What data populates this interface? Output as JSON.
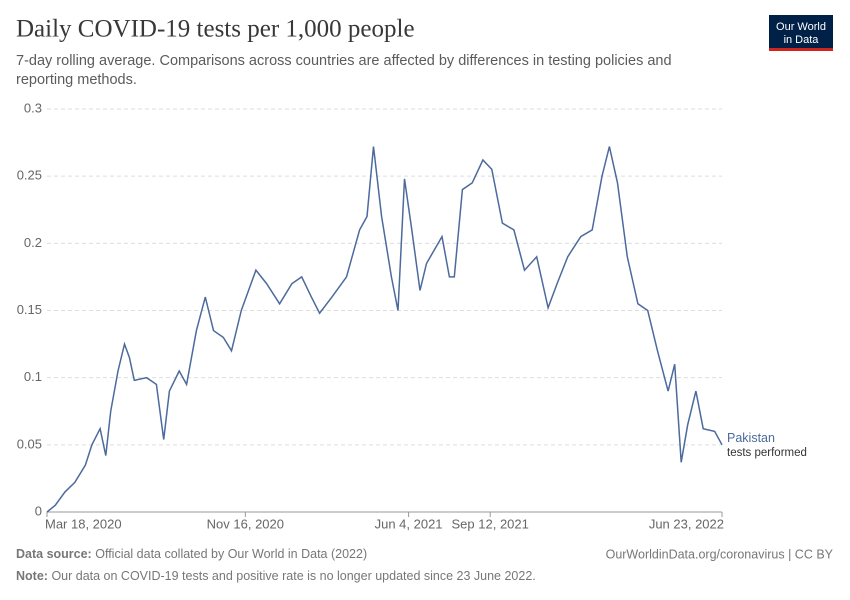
{
  "chart_data": {
    "type": "line",
    "title": "Daily COVID-19 tests per 1,000 people",
    "subtitle": [
      "7-day rolling average. Comparisons across countries are affected by differences in testing policies and",
      "reporting methods."
    ],
    "logo": [
      "Our World",
      "in Data"
    ],
    "annotation": "tests performed",
    "source_label": "Data source:",
    "source": "Official data collated by Our World in Data (2022)",
    "link": "OurWorldinData.org/coronavirus | CC BY",
    "note_label": "Note:",
    "note": "Our data on COVID-19 tests and positive rate is no longer updated since 23 June 2022.",
    "x": [
      "2020-03-18",
      "2020-03-28",
      "2020-04-09",
      "2020-04-21",
      "2020-05-04",
      "2020-05-12",
      "2020-05-22",
      "2020-05-29",
      "2020-06-04",
      "2020-06-13",
      "2020-06-21",
      "2020-06-27",
      "2020-07-03",
      "2020-07-18",
      "2020-07-30",
      "2020-08-08",
      "2020-08-15",
      "2020-08-27",
      "2020-09-05",
      "2020-09-17",
      "2020-09-28",
      "2020-10-08",
      "2020-10-20",
      "2020-10-30",
      "2020-11-11",
      "2020-11-29",
      "2020-12-12",
      "2020-12-28",
      "2021-01-12",
      "2021-01-24",
      "2021-02-05",
      "2021-02-15",
      "2021-03-02",
      "2021-03-20",
      "2021-04-05",
      "2021-04-14",
      "2021-04-22",
      "2021-05-02",
      "2021-05-14",
      "2021-05-22",
      "2021-05-30",
      "2021-06-08",
      "2021-06-18",
      "2021-06-26",
      "2021-07-15",
      "2021-07-24",
      "2021-07-30",
      "2021-08-09",
      "2021-08-21",
      "2021-09-03",
      "2021-09-14",
      "2021-09-27",
      "2021-10-11",
      "2021-10-24",
      "2021-11-08",
      "2021-11-22",
      "2021-12-03",
      "2021-12-16",
      "2022-01-01",
      "2022-01-15",
      "2022-01-27",
      "2022-02-05",
      "2022-02-15",
      "2022-02-27",
      "2022-03-12",
      "2022-03-24",
      "2022-04-05",
      "2022-04-18",
      "2022-04-26",
      "2022-05-04",
      "2022-05-12",
      "2022-05-22",
      "2022-05-31",
      "2022-06-14",
      "2022-06-23"
    ],
    "series": [
      {
        "name": "Pakistan",
        "color": "#4c6a9c",
        "values": [
          0,
          0.005,
          0.015,
          0.022,
          0.035,
          0.05,
          0.062,
          0.042,
          0.075,
          0.105,
          0.125,
          0.115,
          0.098,
          0.1,
          0.095,
          0.054,
          0.09,
          0.105,
          0.095,
          0.135,
          0.16,
          0.135,
          0.13,
          0.12,
          0.15,
          0.18,
          0.17,
          0.155,
          0.17,
          0.175,
          0.16,
          0.148,
          0.16,
          0.175,
          0.21,
          0.22,
          0.272,
          0.22,
          0.175,
          0.15,
          0.248,
          0.21,
          0.165,
          0.185,
          0.205,
          0.175,
          0.175,
          0.24,
          0.245,
          0.262,
          0.255,
          0.215,
          0.21,
          0.18,
          0.19,
          0.152,
          0.17,
          0.19,
          0.205,
          0.21,
          0.25,
          0.272,
          0.245,
          0.19,
          0.155,
          0.15,
          0.12,
          0.09,
          0.11,
          0.037,
          0.065,
          0.09,
          0.062,
          0.06,
          0.05
        ]
      }
    ],
    "xlim": [
      "2020-03-18",
      "2022-06-23"
    ],
    "xticks": [
      {
        "value": "2020-03-18",
        "label": "Mar 18, 2020"
      },
      {
        "value": "2020-11-16",
        "label": "Nov 16, 2020"
      },
      {
        "value": "2021-06-04",
        "label": "Jun 4, 2021"
      },
      {
        "value": "2021-09-12",
        "label": "Sep 12, 2021"
      },
      {
        "value": "2022-06-23",
        "label": "Jun 23, 2022"
      }
    ],
    "ylim": [
      0,
      0.3
    ],
    "yticks": [
      0,
      0.05,
      0.1,
      0.15,
      0.2,
      0.25,
      0.3
    ],
    "grid": true
  }
}
